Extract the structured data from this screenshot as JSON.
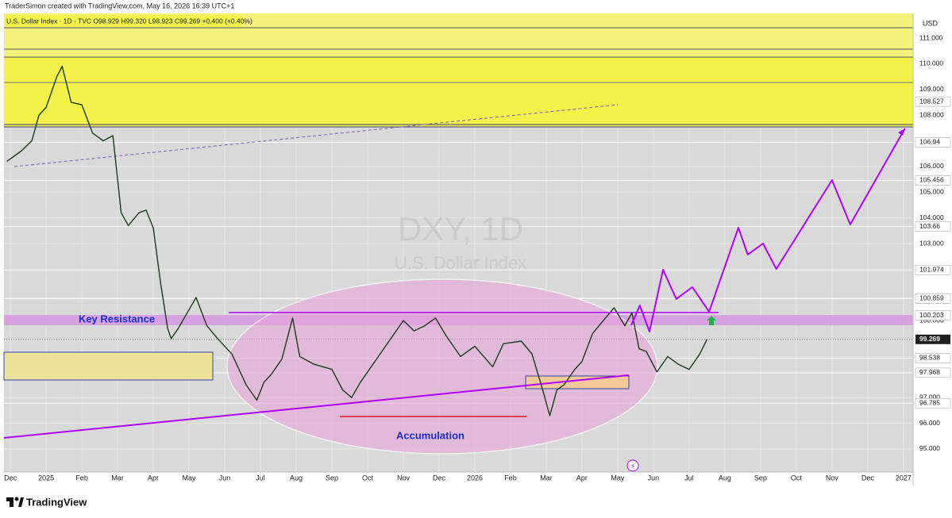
{
  "chart_data": {
    "type": "line",
    "credit": "TraderSimon created with TradingView.com, May 16, 2026 16:39 UTC+1",
    "legend": "U.S. Dollar Index · 1D · TVC  O98.929  H99.320  L98.923  C99.269  +0.400 (+0.40%)",
    "currency": "USD",
    "title": "DXY, 1D",
    "subtitle": "U.S. Dollar Index",
    "annotations": [
      "Key Resistance",
      "Accumulation"
    ],
    "brand": "TradingView",
    "xlim": [
      -0.18,
      25.27
    ],
    "xticks": [
      {
        "value": 0,
        "label": "Dec"
      },
      {
        "value": 1,
        "label": "2025"
      },
      {
        "value": 2,
        "label": "Feb"
      },
      {
        "value": 3,
        "label": "Mar"
      },
      {
        "value": 4,
        "label": "Apr"
      },
      {
        "value": 5,
        "label": "May"
      },
      {
        "value": 6,
        "label": "Jun"
      },
      {
        "value": 7,
        "label": "Jul"
      },
      {
        "value": 8,
        "label": "Aug"
      },
      {
        "value": 9,
        "label": "Sep"
      },
      {
        "value": 10,
        "label": "Oct"
      },
      {
        "value": 11,
        "label": "Nov"
      },
      {
        "value": 12,
        "label": "Dec"
      },
      {
        "value": 13,
        "label": "2026"
      },
      {
        "value": 14,
        "label": "Feb"
      },
      {
        "value": 15,
        "label": "Mar"
      },
      {
        "value": 16,
        "label": "Apr"
      },
      {
        "value": 17,
        "label": "May"
      },
      {
        "value": 18,
        "label": "Jun"
      },
      {
        "value": 19,
        "label": "Jul"
      },
      {
        "value": 20,
        "label": "Aug"
      },
      {
        "value": 21,
        "label": "Sep"
      },
      {
        "value": 22,
        "label": "Oct"
      },
      {
        "value": 23,
        "label": "Nov"
      },
      {
        "value": 24,
        "label": "Dec"
      },
      {
        "value": 25,
        "label": "2027"
      }
    ],
    "ylim": [
      94.104,
      111.958
    ],
    "yticks": [
      {
        "value": 95,
        "label": "95.000"
      },
      {
        "value": 96,
        "label": "96.000"
      },
      {
        "value": 97,
        "label": "97.000"
      },
      {
        "value": 100,
        "label": "100.000"
      },
      {
        "value": 103,
        "label": "103.000"
      },
      {
        "value": 104,
        "label": "104.000"
      },
      {
        "value": 105,
        "label": "105.000"
      },
      {
        "value": 106,
        "label": "106.000"
      },
      {
        "value": 108,
        "label": "108.000"
      },
      {
        "value": 109,
        "label": "109.000"
      },
      {
        "value": 110,
        "label": "110.000"
      },
      {
        "value": 111,
        "label": "111.000"
      }
    ],
    "price_levels": [
      108.527,
      106.94,
      105.456,
      103.66,
      101.974,
      100.859,
      100.203,
      98.538,
      97.968,
      96.785
    ],
    "last_price": 99.269,
    "series": [
      {
        "color": "#1e3a1e",
        "x": [
          -0.1,
          0.3,
          0.6,
          0.8,
          1.0,
          1.3,
          1.45,
          1.7,
          2.0,
          2.3,
          2.6,
          2.87,
          3.1,
          3.3,
          3.6,
          3.8,
          4.0,
          4.2,
          4.4,
          4.5,
          4.7,
          5.2,
          5.5,
          5.8,
          6.2,
          6.6,
          6.9,
          7.1,
          7.3,
          7.6,
          7.9,
          8.1,
          8.5,
          9.0,
          9.3,
          9.55,
          9.8,
          10.2,
          10.6,
          11.0,
          11.3,
          11.6,
          11.9,
          12.2,
          12.6,
          13.0,
          13.5,
          13.8,
          14.3,
          14.6,
          14.9,
          15.1,
          15.3,
          15.5,
          15.8,
          16.0,
          16.3,
          16.6,
          16.9,
          17.2,
          17.4,
          17.6,
          17.8,
          18.1,
          18.4,
          18.7,
          19.0,
          19.3,
          19.5
        ],
        "values": [
          106.2,
          106.6,
          107.0,
          108.0,
          108.3,
          109.5,
          109.9,
          108.5,
          108.4,
          107.3,
          107.0,
          107.2,
          104.2,
          103.7,
          104.2,
          104.3,
          103.6,
          101.5,
          99.7,
          99.3,
          99.7,
          100.9,
          99.8,
          99.3,
          98.7,
          97.5,
          96.9,
          97.6,
          97.9,
          98.5,
          100.1,
          98.6,
          98.3,
          98.1,
          97.3,
          97.0,
          97.6,
          98.4,
          99.2,
          100.0,
          99.6,
          99.8,
          100.1,
          99.4,
          98.6,
          99.0,
          98.2,
          99.1,
          99.2,
          98.7,
          97.3,
          96.3,
          97.3,
          97.5,
          98.1,
          98.4,
          99.5,
          100.0,
          100.5,
          99.8,
          100.3,
          98.9,
          98.8,
          98.0,
          98.6,
          98.3,
          98.1,
          98.7,
          99.27
        ]
      },
      {
        "color": "#b100ff",
        "x": [
          17.38,
          17.62,
          17.89,
          18.27,
          18.64,
          19.09,
          19.56,
          20.38,
          20.64,
          21.07,
          21.44,
          23.0,
          23.51,
          25.04
        ],
        "values": [
          99.82,
          100.59,
          99.57,
          101.98,
          100.84,
          101.3,
          100.34,
          103.62,
          102.57,
          103.0,
          102.01,
          105.47,
          103.74,
          107.48
        ]
      }
    ]
  }
}
